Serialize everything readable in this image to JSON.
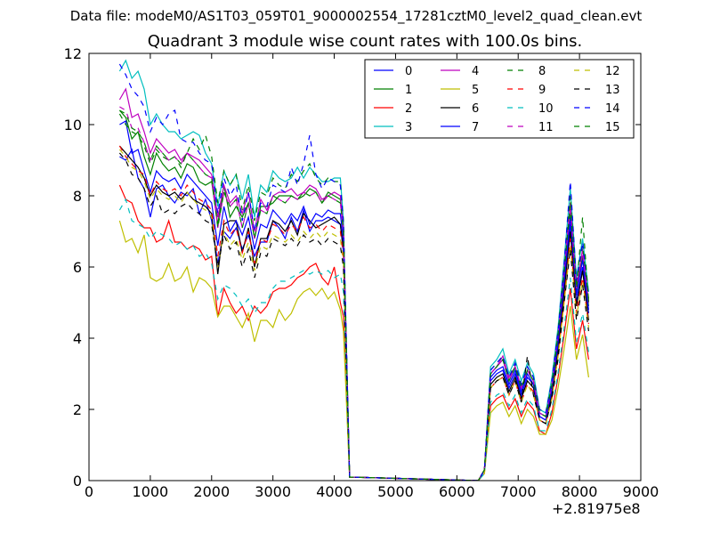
{
  "suptitle": "Data file: modeM0/AS1T03_059T01_9000002554_17281cztM0_level2_quad_clean.evt",
  "x_offset_label": "+2.81975e8",
  "chart_data": {
    "type": "line",
    "title": "Quadrant 3 module wise count rates with 100.0s bins.",
    "xlabel": "",
    "ylabel": "",
    "xlim": [
      0,
      9000
    ],
    "ylim": [
      0,
      12
    ],
    "xticks": [
      0,
      1000,
      2000,
      3000,
      4000,
      5000,
      6000,
      7000,
      8000,
      9000
    ],
    "yticks": [
      0,
      2,
      4,
      6,
      8,
      10,
      12
    ],
    "legend": "top-right",
    "grid": false,
    "x": [
      500,
      600,
      700,
      800,
      900,
      1000,
      1100,
      1200,
      1300,
      1400,
      1500,
      1600,
      1700,
      1800,
      1900,
      2000,
      2100,
      2200,
      2300,
      2400,
      2500,
      2600,
      2700,
      2800,
      2900,
      3000,
      3100,
      3200,
      3300,
      3400,
      3500,
      3600,
      3700,
      3800,
      3900,
      4000,
      4100,
      4150,
      4250,
      6350,
      6450,
      6550,
      6650,
      6750,
      6850,
      6950,
      7050,
      7150,
      7250,
      7350,
      7450,
      7550,
      7650,
      7750,
      7850,
      7950,
      8050,
      8150
    ],
    "series": [
      {
        "name": "0",
        "color": "#0000ff",
        "dash": false,
        "values": [
          9.1,
          9.0,
          9.3,
          8.5,
          8.2,
          7.4,
          8.2,
          8.3,
          8.0,
          7.8,
          8.1,
          8.0,
          8.2,
          7.5,
          7.9,
          7.3,
          6.1,
          7.0,
          6.8,
          7.1,
          6.5,
          6.9,
          6.3,
          6.7,
          6.7,
          7.3,
          7.1,
          6.8,
          7.4,
          7.0,
          7.6,
          7.0,
          7.3,
          7.3,
          7.4,
          7.3,
          7.2,
          6.4,
          0.1,
          0.0,
          0.3,
          2.8,
          3.0,
          3.1,
          2.6,
          3.0,
          2.4,
          2.9,
          2.7,
          1.8,
          1.7,
          2.5,
          3.8,
          5.5,
          7.2,
          5.0,
          6.0,
          4.7
        ]
      },
      {
        "name": "1",
        "color": "#008000",
        "dash": false,
        "values": [
          10.4,
          10.2,
          9.6,
          9.8,
          9.1,
          8.6,
          9.2,
          8.9,
          8.7,
          8.8,
          8.5,
          8.9,
          8.8,
          8.4,
          8.3,
          8.4,
          7.2,
          8.3,
          7.4,
          7.7,
          7.4,
          7.8,
          6.8,
          7.7,
          7.7,
          7.8,
          8.0,
          8.0,
          8.0,
          7.9,
          8.0,
          8.2,
          8.1,
          7.8,
          8.1,
          8.0,
          7.9,
          7.0,
          0.1,
          0.0,
          0.3,
          3.0,
          3.2,
          3.4,
          2.8,
          3.2,
          2.6,
          3.1,
          2.8,
          1.9,
          1.8,
          2.7,
          4.0,
          5.8,
          7.6,
          5.3,
          6.3,
          4.9
        ]
      },
      {
        "name": "2",
        "color": "#ff0000",
        "dash": false,
        "values": [
          8.3,
          7.9,
          7.8,
          7.3,
          7.1,
          7.1,
          6.7,
          6.8,
          7.3,
          6.7,
          6.7,
          6.5,
          6.6,
          6.5,
          6.2,
          6.3,
          4.6,
          5.4,
          5.0,
          4.7,
          4.9,
          4.5,
          4.9,
          4.7,
          4.9,
          5.3,
          5.4,
          5.4,
          5.5,
          5.7,
          5.8,
          6.0,
          6.1,
          5.7,
          5.5,
          6.0,
          5.0,
          4.6,
          0.1,
          0.0,
          0.2,
          2.1,
          2.3,
          2.4,
          2.0,
          2.3,
          1.8,
          2.2,
          2.0,
          1.4,
          1.3,
          1.9,
          2.9,
          4.1,
          5.4,
          3.7,
          4.5,
          3.4
        ]
      },
      {
        "name": "3",
        "color": "#00bfbf",
        "dash": false,
        "values": [
          11.5,
          11.8,
          11.3,
          11.5,
          11.0,
          10.0,
          10.3,
          10.0,
          9.8,
          9.8,
          9.6,
          9.7,
          9.8,
          9.7,
          9.2,
          8.9,
          7.7,
          8.7,
          8.3,
          8.6,
          7.9,
          8.6,
          7.4,
          8.3,
          8.1,
          8.7,
          8.5,
          8.4,
          8.5,
          8.8,
          8.5,
          8.8,
          8.6,
          8.4,
          8.4,
          8.5,
          8.5,
          7.3,
          0.1,
          0.0,
          0.3,
          3.2,
          3.4,
          3.7,
          3.0,
          3.4,
          2.8,
          3.3,
          3.0,
          2.0,
          1.9,
          2.9,
          4.3,
          6.2,
          8.2,
          5.7,
          6.8,
          5.3
        ]
      },
      {
        "name": "4",
        "color": "#bf00bf",
        "dash": false,
        "values": [
          10.7,
          11.0,
          10.2,
          10.3,
          9.8,
          9.2,
          9.6,
          9.4,
          9.2,
          9.3,
          9.0,
          9.2,
          9.1,
          9.0,
          8.8,
          8.6,
          7.4,
          8.3,
          7.8,
          8.0,
          7.5,
          8.1,
          7.0,
          7.9,
          7.6,
          8.0,
          8.1,
          8.1,
          8.2,
          8.0,
          8.1,
          8.3,
          8.2,
          7.9,
          8.0,
          8.1,
          8.0,
          7.1,
          0.1,
          0.0,
          0.3,
          3.0,
          3.2,
          3.5,
          2.9,
          3.2,
          2.6,
          3.1,
          2.8,
          1.9,
          1.8,
          2.7,
          4.1,
          5.9,
          7.8,
          5.4,
          6.5,
          5.0
        ]
      },
      {
        "name": "5",
        "color": "#bfbf00",
        "dash": false,
        "values": [
          7.3,
          6.7,
          6.8,
          6.4,
          6.9,
          5.7,
          5.6,
          5.7,
          6.1,
          5.6,
          5.7,
          6.0,
          5.3,
          5.7,
          5.6,
          5.4,
          4.6,
          4.9,
          4.9,
          4.6,
          4.3,
          4.7,
          3.9,
          4.5,
          4.5,
          4.3,
          4.8,
          4.5,
          4.7,
          5.1,
          5.3,
          5.4,
          5.2,
          5.4,
          5.1,
          5.3,
          4.8,
          4.2,
          0.1,
          0.0,
          0.2,
          1.9,
          2.1,
          2.2,
          1.8,
          2.1,
          1.6,
          2.0,
          1.8,
          1.3,
          1.3,
          1.7,
          2.6,
          3.7,
          4.9,
          3.4,
          4.1,
          2.9
        ]
      },
      {
        "name": "6",
        "color": "#000000",
        "dash": false,
        "values": [
          9.4,
          9.2,
          9.0,
          8.8,
          8.5,
          8.0,
          8.3,
          8.1,
          8.0,
          8.1,
          7.9,
          8.1,
          7.9,
          7.8,
          7.7,
          7.5,
          5.8,
          7.2,
          7.3,
          7.3,
          6.4,
          7.1,
          6.0,
          6.8,
          6.8,
          7.3,
          7.2,
          7.0,
          7.3,
          6.9,
          7.5,
          7.3,
          7.1,
          7.2,
          7.3,
          7.4,
          7.2,
          6.5,
          0.1,
          0.0,
          0.3,
          2.7,
          2.9,
          3.0,
          2.5,
          2.9,
          2.3,
          2.8,
          2.6,
          1.7,
          1.6,
          2.4,
          3.6,
          5.3,
          7.0,
          4.9,
          5.9,
          4.5
        ]
      },
      {
        "name": "7",
        "color": "#0000ff",
        "dash": false,
        "values": [
          10.0,
          10.1,
          9.2,
          9.3,
          8.7,
          8.1,
          8.7,
          8.5,
          8.4,
          8.5,
          8.2,
          8.6,
          8.4,
          8.2,
          8.0,
          7.8,
          6.6,
          7.7,
          7.0,
          7.3,
          6.9,
          7.4,
          6.5,
          7.2,
          7.1,
          7.6,
          7.4,
          7.2,
          7.5,
          7.3,
          7.7,
          7.2,
          7.5,
          7.4,
          7.6,
          7.5,
          7.5,
          6.7,
          0.1,
          0.0,
          0.3,
          2.9,
          3.1,
          3.2,
          2.7,
          3.1,
          2.5,
          3.0,
          2.7,
          1.8,
          1.7,
          2.6,
          3.9,
          5.6,
          7.4,
          5.2,
          6.2,
          4.8
        ]
      },
      {
        "name": "8",
        "color": "#008000",
        "dash": true,
        "values": [
          10.3,
          10.0,
          9.8,
          9.7,
          9.4,
          8.9,
          9.3,
          9.1,
          9.0,
          9.1,
          8.8,
          9.2,
          9.6,
          9.3,
          9.7,
          9.1,
          7.8,
          8.7,
          8.3,
          8.6,
          7.6,
          8.3,
          7.3,
          8.1,
          8.0,
          8.5,
          8.3,
          8.2,
          8.6,
          8.4,
          8.7,
          8.9,
          8.5,
          8.3,
          8.5,
          8.4,
          8.4,
          7.3,
          0.1,
          0.0,
          0.3,
          3.1,
          3.3,
          3.5,
          2.9,
          3.3,
          2.7,
          3.2,
          2.9,
          2.0,
          1.9,
          2.8,
          4.2,
          6.0,
          8.0,
          5.5,
          6.6,
          5.1
        ]
      },
      {
        "name": "9",
        "color": "#ff0000",
        "dash": true,
        "values": [
          9.4,
          9.1,
          8.9,
          8.7,
          8.6,
          8.0,
          8.4,
          8.2,
          8.1,
          8.2,
          8.0,
          8.3,
          8.1,
          7.9,
          7.8,
          7.6,
          6.3,
          7.3,
          6.9,
          7.1,
          6.4,
          7.0,
          6.1,
          6.8,
          6.7,
          7.2,
          7.1,
          6.9,
          7.2,
          7.0,
          7.4,
          7.1,
          7.2,
          7.0,
          7.2,
          7.1,
          7.0,
          6.3,
          0.1,
          0.0,
          0.3,
          2.6,
          2.8,
          2.9,
          2.4,
          2.8,
          2.2,
          2.7,
          2.5,
          1.7,
          1.6,
          2.3,
          3.5,
          5.1,
          6.8,
          4.7,
          5.7,
          4.4
        ]
      },
      {
        "name": "10",
        "color": "#00bfbf",
        "dash": true,
        "values": [
          7.6,
          7.9,
          7.3,
          7.2,
          7.1,
          6.8,
          7.0,
          6.9,
          6.8,
          6.6,
          6.7,
          6.5,
          6.6,
          6.3,
          6.4,
          6.1,
          5.1,
          5.5,
          5.4,
          5.2,
          4.9,
          5.1,
          4.7,
          5.0,
          5.0,
          5.4,
          5.6,
          5.6,
          5.7,
          5.8,
          5.9,
          5.8,
          5.9,
          5.8,
          5.9,
          5.7,
          5.8,
          5.3,
          0.1,
          0.0,
          0.2,
          2.2,
          2.4,
          2.5,
          2.1,
          2.4,
          1.9,
          2.3,
          2.1,
          1.4,
          1.4,
          2.0,
          3.0,
          4.3,
          5.7,
          3.9,
          4.7,
          3.6
        ]
      },
      {
        "name": "11",
        "color": "#bf00bf",
        "dash": true,
        "values": [
          10.5,
          10.4,
          9.9,
          9.9,
          9.5,
          9.0,
          9.4,
          9.2,
          9.0,
          9.1,
          8.9,
          9.2,
          9.0,
          8.8,
          8.6,
          8.5,
          7.1,
          8.1,
          7.7,
          7.9,
          7.1,
          7.8,
          6.8,
          7.6,
          7.5,
          8.0,
          7.9,
          7.8,
          8.0,
          7.9,
          8.1,
          8.0,
          8.1,
          7.8,
          8.0,
          7.9,
          7.8,
          7.0,
          0.1,
          0.0,
          0.3,
          3.0,
          3.2,
          3.4,
          2.8,
          3.2,
          2.6,
          3.1,
          2.8,
          1.9,
          1.8,
          2.7,
          4.1,
          5.9,
          7.7,
          5.4,
          6.4,
          5.0
        ]
      },
      {
        "name": "12",
        "color": "#bfbf00",
        "dash": true,
        "values": [
          9.3,
          9.1,
          8.8,
          8.7,
          8.4,
          7.9,
          8.2,
          8.0,
          7.9,
          8.0,
          7.8,
          8.1,
          7.9,
          7.7,
          7.6,
          7.4,
          6.0,
          7.0,
          6.6,
          6.8,
          6.2,
          6.7,
          5.9,
          6.6,
          6.5,
          6.9,
          6.8,
          6.7,
          6.9,
          6.7,
          7.0,
          6.8,
          7.0,
          6.8,
          7.0,
          6.9,
          6.8,
          6.1,
          0.1,
          0.0,
          0.3,
          2.6,
          2.8,
          2.9,
          2.4,
          2.8,
          2.2,
          2.7,
          2.4,
          1.7,
          1.6,
          2.3,
          3.5,
          5.0,
          6.6,
          4.6,
          5.6,
          4.3
        ]
      },
      {
        "name": "13",
        "color": "#000000",
        "dash": true,
        "values": [
          9.2,
          9.0,
          8.6,
          8.5,
          8.2,
          7.7,
          8.0,
          7.5,
          7.6,
          7.5,
          7.7,
          7.8,
          7.6,
          7.5,
          7.3,
          7.2,
          6.0,
          6.9,
          6.5,
          6.7,
          6.0,
          6.5,
          5.7,
          6.4,
          6.3,
          6.8,
          6.7,
          6.6,
          6.8,
          6.6,
          6.9,
          6.7,
          6.8,
          6.6,
          6.8,
          6.7,
          6.6,
          6.0,
          0.1,
          0.0,
          0.3,
          2.6,
          2.8,
          2.9,
          2.4,
          2.8,
          2.2,
          3.5,
          2.4,
          1.7,
          1.6,
          2.3,
          3.4,
          5.0,
          6.5,
          4.5,
          5.5,
          4.2
        ]
      },
      {
        "name": "14",
        "color": "#0000ff",
        "dash": true,
        "values": [
          11.7,
          11.4,
          11.0,
          10.8,
          10.5,
          9.8,
          10.2,
          10.0,
          10.3,
          10.4,
          9.6,
          9.5,
          9.5,
          9.2,
          9.0,
          8.9,
          7.5,
          8.5,
          8.0,
          8.3,
          7.3,
          8.1,
          7.0,
          7.8,
          7.7,
          8.3,
          8.2,
          8.1,
          8.8,
          8.3,
          8.9,
          9.7,
          8.6,
          8.2,
          8.5,
          8.4,
          8.3,
          7.2,
          0.1,
          0.0,
          0.3,
          3.1,
          3.3,
          3.5,
          2.9,
          3.3,
          2.7,
          3.2,
          2.9,
          2.0,
          1.9,
          2.8,
          4.2,
          6.1,
          8.4,
          5.6,
          6.7,
          5.2
        ]
      },
      {
        "name": "15",
        "color": "#008000",
        "dash": true,
        "values": [
          10.4,
          10.3,
          9.9,
          9.8,
          9.5,
          9.0,
          9.4,
          9.2,
          9.0,
          9.1,
          8.9,
          9.2,
          9.0,
          8.8,
          8.6,
          8.5,
          7.1,
          8.1,
          7.7,
          7.9,
          7.1,
          7.8,
          6.8,
          7.6,
          7.5,
          8.0,
          7.9,
          7.8,
          8.0,
          7.9,
          8.1,
          8.0,
          8.1,
          7.8,
          8.0,
          7.9,
          7.8,
          7.0,
          0.1,
          0.0,
          0.3,
          3.0,
          3.2,
          3.4,
          2.8,
          3.2,
          2.6,
          3.1,
          2.8,
          1.9,
          1.8,
          2.7,
          4.1,
          5.9,
          7.7,
          5.4,
          7.4,
          5.0
        ]
      }
    ]
  }
}
